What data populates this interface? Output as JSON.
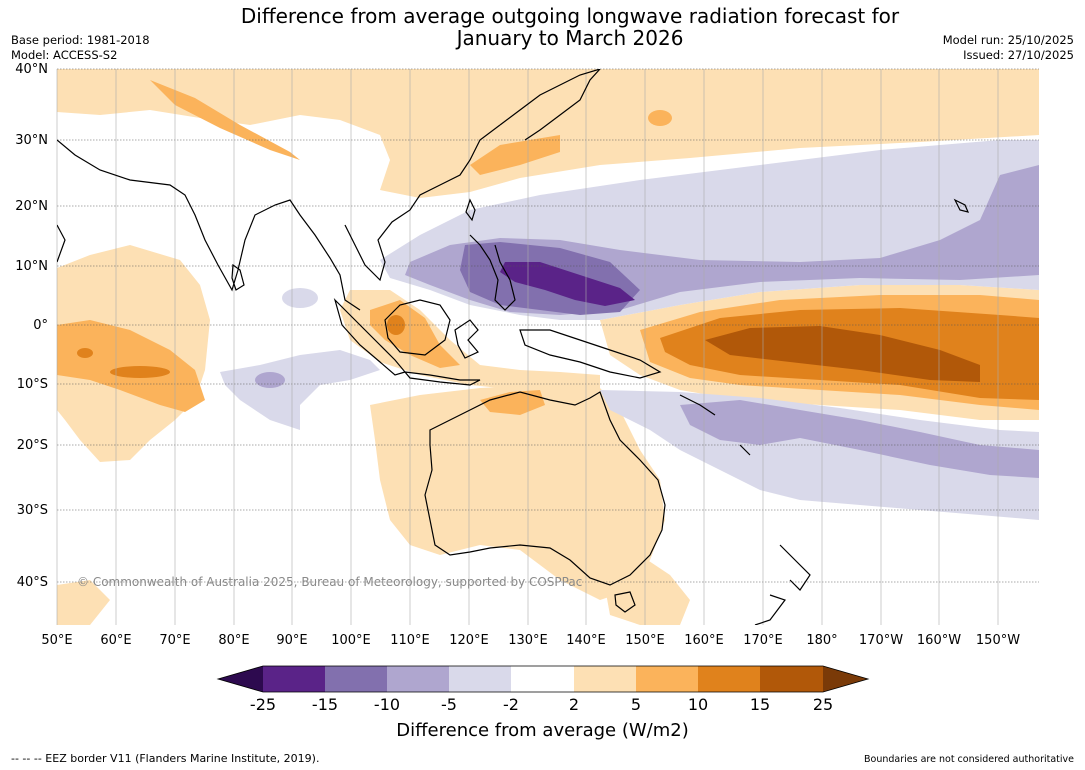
{
  "header": {
    "title_line1": "Difference from average outgoing longwave radiation forecast for",
    "title_line2": "January to March 2026",
    "base_period": "Base period: 1981-2018",
    "model": "Model: ACCESS-S2",
    "model_run": "Model run: 25/10/2025",
    "issued": "Issued: 27/10/2025"
  },
  "map": {
    "lat_labels": [
      "40°N",
      "30°N",
      "20°N",
      "10°N",
      "0°",
      "10°S",
      "20°S",
      "30°S",
      "40°S"
    ],
    "lon_labels": [
      "50°E",
      "60°E",
      "70°E",
      "80°E",
      "90°E",
      "100°E",
      "110°E",
      "120°E",
      "130°E",
      "140°E",
      "150°E",
      "160°E",
      "170°E",
      "180°",
      "170°W",
      "160°W",
      "150°W"
    ],
    "copyright": "© Commonwealth of Australia 2025, Bureau of Meteorology, supported by COSPPac"
  },
  "colorbar": {
    "ticks": [
      "-25",
      "-15",
      "-10",
      "-5",
      "-2",
      "2",
      "5",
      "10",
      "15",
      "25"
    ],
    "label": "Difference from average (W/m2)",
    "colors": {
      "lt_-25": "#2d0a4f",
      "-25_-15": "#5a2388",
      "-15_-10": "#8270ae",
      "-10_-5": "#afa6cf",
      "-5_-2": "#d9d9ea",
      "-2_2": "#ffffff",
      "2_5": "#fde0b4",
      "5_10": "#fbb35b",
      "10_15": "#e0821c",
      "15_25": "#b15809",
      "gt_25": "#7a3a08"
    }
  },
  "footer": {
    "eez_note": "--  --  -- EEZ border V11 (Flanders Marine Institute, 2019).",
    "disclaimer": "Boundaries are not considered authoritative"
  }
}
